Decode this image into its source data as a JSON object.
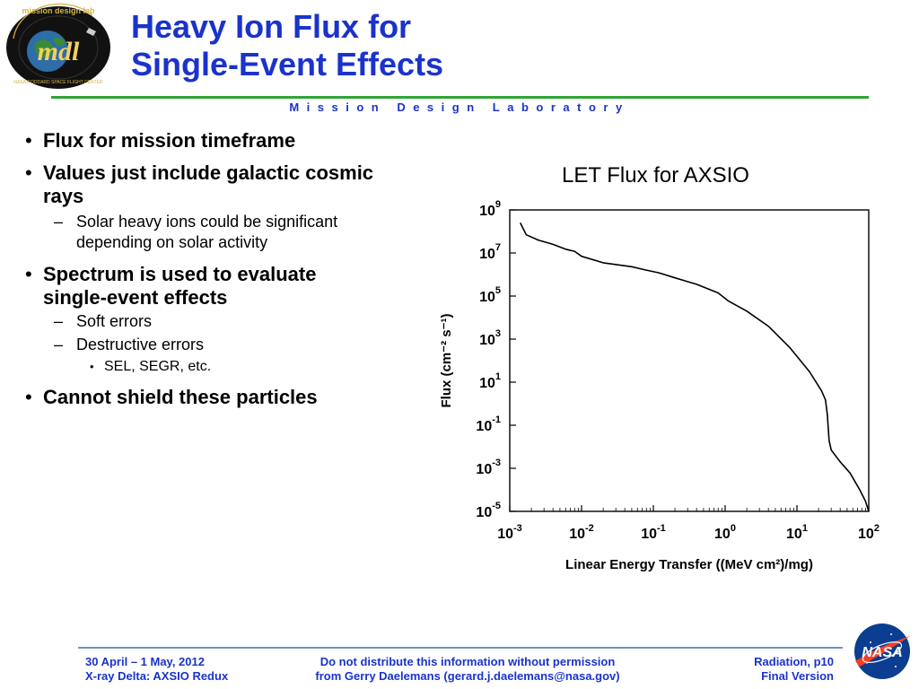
{
  "header": {
    "logo_text": "mission design lab",
    "logo_initials": "mdl",
    "logo_subtext": "NASA GODDARD SPACE FLIGHT CENTER",
    "title_line1": "Heavy Ion Flux for",
    "title_line2": "Single-Event Effects",
    "subbar": "Mission Design Laboratory"
  },
  "colors": {
    "title": "#1a33cc",
    "rule": "#2fa534",
    "footer_rule": "#7090c0"
  },
  "bullets": {
    "b1": "Flux for mission timeframe",
    "b2": "Values just include galactic cosmic rays",
    "b2_sub1": "Solar heavy ions could be significant depending on solar activity",
    "b3": "Spectrum is used to evaluate single-event effects",
    "b3_sub1": "Soft errors",
    "b3_sub2": "Destructive errors",
    "b3_sub2_sub1": "SEL, SEGR, etc.",
    "b4": "Cannot shield these particles"
  },
  "chart_title": "LET Flux for AXSIO",
  "chart_data": {
    "type": "line",
    "xlabel": "Linear Energy Transfer ((MeV cm²)/mg)",
    "ylabel": "Flux (cm⁻² s⁻¹)",
    "x_scale": "log",
    "y_scale": "log",
    "xlim": [
      0.001,
      100
    ],
    "ylim": [
      1e-05,
      1000000000
    ],
    "x_ticks": [
      {
        "base": "10",
        "exp": "-3"
      },
      {
        "base": "10",
        "exp": "-2"
      },
      {
        "base": "10",
        "exp": "-1"
      },
      {
        "base": "10",
        "exp": "0"
      },
      {
        "base": "10",
        "exp": "1"
      },
      {
        "base": "10",
        "exp": "2"
      }
    ],
    "y_ticks": [
      {
        "base": "10",
        "exp": "9"
      },
      {
        "base": "10",
        "exp": "7"
      },
      {
        "base": "10",
        "exp": "5"
      },
      {
        "base": "10",
        "exp": "3"
      },
      {
        "base": "10",
        "exp": "1"
      },
      {
        "base": "10",
        "exp": "-1"
      },
      {
        "base": "10",
        "exp": "-3"
      },
      {
        "base": "10",
        "exp": "-5"
      }
    ],
    "grid": false,
    "series": [
      {
        "values": [
          [
            0.0014,
            250000000
          ],
          [
            0.0017,
            70000000
          ],
          [
            0.0025,
            40000000
          ],
          [
            0.004,
            25000000
          ],
          [
            0.006,
            15000000
          ],
          [
            0.008,
            12000000
          ],
          [
            0.01,
            7000000
          ],
          [
            0.02,
            3500000
          ],
          [
            0.05,
            2300000
          ],
          [
            0.08,
            1600000
          ],
          [
            0.12,
            1200000
          ],
          [
            0.2,
            700000
          ],
          [
            0.4,
            350000
          ],
          [
            0.8,
            140000
          ],
          [
            1.1,
            60000
          ],
          [
            2.0,
            20000
          ],
          [
            4.0,
            4000
          ],
          [
            8.0,
            400
          ],
          [
            15.0,
            30
          ],
          [
            22.0,
            4
          ],
          [
            25.0,
            1.5
          ],
          [
            26.5,
            0.3
          ],
          [
            28.0,
            0.02
          ],
          [
            30.0,
            0.007
          ],
          [
            40.0,
            0.002
          ],
          [
            55.0,
            0.0006
          ],
          [
            75.0,
            0.0001
          ],
          [
            90.0,
            3e-05
          ],
          [
            100.0,
            1e-05
          ]
        ]
      }
    ]
  },
  "footer": {
    "left1": "30 April – 1 May, 2012",
    "left2": "X-ray Delta: AXSIO Redux",
    "center1": "Do not distribute this information without permission",
    "center2": "from Gerry Daelemans (gerard.j.daelemans@nasa.gov)",
    "right1": "Radiation, p10",
    "right2": "Final Version",
    "nasa_logo_text": "NASA"
  }
}
